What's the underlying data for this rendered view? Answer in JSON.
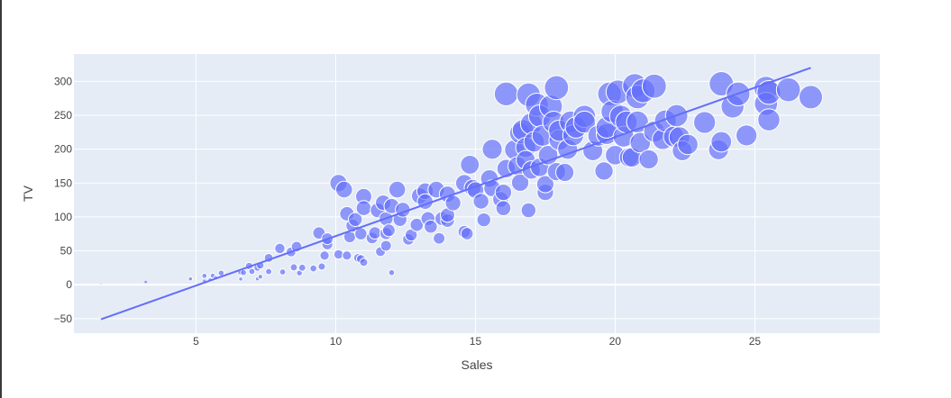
{
  "chart_data": {
    "type": "scatter",
    "title": "",
    "xlabel": "Sales",
    "ylabel": "TV",
    "xlim": [
      0.63,
      29.47
    ],
    "ylim": [
      -71.5,
      340.3
    ],
    "x_ticks": [
      5,
      10,
      15,
      20,
      25
    ],
    "y_ticks": [
      -50,
      0,
      50,
      100,
      150,
      200,
      250,
      300
    ],
    "grid": true,
    "legend": "none",
    "marker_size_encodes": "TV",
    "marker_color": "#636efa",
    "plot_background": "#e5ecf6",
    "trendline": {
      "x": [
        1.6,
        27.0
      ],
      "y": [
        -51,
        320
      ],
      "color": "#636efa"
    },
    "points": [
      [
        1.6,
        0.7
      ],
      [
        3.2,
        4.1
      ],
      [
        4.8,
        8.6
      ],
      [
        5.3,
        13.1
      ],
      [
        5.3,
        5.4
      ],
      [
        5.5,
        7.3
      ],
      [
        5.6,
        13.2
      ],
      [
        5.7,
        10.1
      ],
      [
        5.9,
        17.2
      ],
      [
        6.6,
        8.4
      ],
      [
        6.6,
        18.7
      ],
      [
        6.7,
        17.9
      ],
      [
        6.9,
        27.5
      ],
      [
        7.0,
        19.6
      ],
      [
        7.2,
        25.1
      ],
      [
        7.2,
        8.7
      ],
      [
        7.3,
        28.6
      ],
      [
        7.3,
        11.7
      ],
      [
        7.6,
        39.5
      ],
      [
        7.6,
        19.4
      ],
      [
        8.0,
        53.5
      ],
      [
        8.1,
        18.8
      ],
      [
        8.4,
        48.3
      ],
      [
        8.5,
        25.6
      ],
      [
        8.6,
        56.2
      ],
      [
        8.7,
        17.2
      ],
      [
        8.8,
        25.0
      ],
      [
        9.2,
        24.0
      ],
      [
        9.4,
        76.3
      ],
      [
        9.5,
        26.8
      ],
      [
        9.6,
        43.0
      ],
      [
        9.7,
        59.6
      ],
      [
        9.7,
        67.8
      ],
      [
        10.1,
        149.8
      ],
      [
        10.1,
        44.7
      ],
      [
        10.3,
        140.3
      ],
      [
        10.4,
        104.6
      ],
      [
        10.4,
        43.1
      ],
      [
        10.5,
        70.6
      ],
      [
        10.6,
        87.2
      ],
      [
        10.7,
        96.2
      ],
      [
        10.8,
        39.5
      ],
      [
        10.9,
        75.1
      ],
      [
        10.9,
        38.0
      ],
      [
        11.0,
        130.1
      ],
      [
        11.0,
        33.0
      ],
      [
        11.0,
        113.0
      ],
      [
        11.3,
        69.0
      ],
      [
        11.4,
        76.4
      ],
      [
        11.5,
        109.8
      ],
      [
        11.6,
        48.8
      ],
      [
        11.7,
        121.0
      ],
      [
        11.8,
        57.5
      ],
      [
        11.8,
        75.5
      ],
      [
        11.8,
        97.2
      ],
      [
        11.9,
        80.2
      ],
      [
        12.0,
        116.0
      ],
      [
        12.0,
        17.9
      ],
      [
        12.2,
        140.3
      ],
      [
        12.3,
        96.2
      ],
      [
        12.4,
        110.7
      ],
      [
        12.6,
        66.9
      ],
      [
        12.7,
        73.4
      ],
      [
        12.9,
        88.3
      ],
      [
        13.0,
        131.1
      ],
      [
        13.2,
        137.9
      ],
      [
        13.2,
        122.6
      ],
      [
        13.3,
        97.5
      ],
      [
        13.4,
        85.7
      ],
      [
        13.6,
        140.3
      ],
      [
        13.7,
        68.4
      ],
      [
        13.8,
        97.5
      ],
      [
        14.0,
        133.5
      ],
      [
        14.0,
        94.7
      ],
      [
        14.0,
        102.7
      ],
      [
        14.2,
        120.5
      ],
      [
        14.6,
        149.7
      ],
      [
        14.6,
        78.2
      ],
      [
        14.7,
        75.3
      ],
      [
        14.8,
        177.0
      ],
      [
        14.9,
        142.9
      ],
      [
        15.0,
        139.5
      ],
      [
        15.2,
        123.1
      ],
      [
        15.3,
        95.7
      ],
      [
        15.5,
        156.6
      ],
      [
        15.6,
        142.3
      ],
      [
        15.6,
        199.8
      ],
      [
        15.9,
        125.7
      ],
      [
        16.0,
        112.9
      ],
      [
        16.0,
        136.2
      ],
      [
        16.1,
        281.4
      ],
      [
        16.1,
        171.3
      ],
      [
        16.4,
        199.1
      ],
      [
        16.5,
        175.1
      ],
      [
        16.6,
        150.5
      ],
      [
        16.6,
        223.6
      ],
      [
        16.7,
        228.0
      ],
      [
        16.8,
        202.5
      ],
      [
        16.8,
        183.9
      ],
      [
        16.9,
        280.2
      ],
      [
        16.9,
        109.8
      ],
      [
        17.0,
        169.2
      ],
      [
        17.0,
        237.4
      ],
      [
        17.1,
        210.8
      ],
      [
        17.2,
        265.6
      ],
      [
        17.3,
        248.8
      ],
      [
        17.3,
        173.2
      ],
      [
        17.4,
        219.8
      ],
      [
        17.5,
        136.2
      ],
      [
        17.5,
        148.3
      ],
      [
        17.6,
        191.1
      ],
      [
        17.7,
        262.9
      ],
      [
        17.8,
        239.8
      ],
      [
        17.9,
        290.7
      ],
      [
        17.9,
        166.8
      ],
      [
        18.0,
        213.4
      ],
      [
        18.0,
        227.2
      ],
      [
        18.2,
        165.6
      ],
      [
        18.3,
        199.8
      ],
      [
        18.4,
        240.1
      ],
      [
        18.5,
        220.5
      ],
      [
        18.6,
        232.1
      ],
      [
        18.9,
        248.4
      ],
      [
        18.9,
        239.9
      ],
      [
        19.2,
        197.6
      ],
      [
        19.4,
        219.9
      ],
      [
        19.6,
        167.7
      ],
      [
        19.7,
        222.4
      ],
      [
        19.7,
        232.1
      ],
      [
        19.8,
        281.4
      ],
      [
        19.9,
        255.4
      ],
      [
        20.0,
        191.1
      ],
      [
        20.1,
        284.3
      ],
      [
        20.2,
        248.4
      ],
      [
        20.3,
        218.4
      ],
      [
        20.4,
        240.1
      ],
      [
        20.5,
        187.8
      ],
      [
        20.6,
        187.9
      ],
      [
        20.7,
        293.6
      ],
      [
        20.8,
        276.9
      ],
      [
        20.8,
        240.1
      ],
      [
        20.9,
        209.6
      ],
      [
        21.0,
        286.0
      ],
      [
        21.2,
        184.9
      ],
      [
        21.4,
        292.9
      ],
      [
        21.4,
        225.8
      ],
      [
        21.7,
        214.7
      ],
      [
        21.8,
        241.7
      ],
      [
        22.1,
        218.5
      ],
      [
        22.2,
        249.3
      ],
      [
        22.3,
        217.7
      ],
      [
        22.4,
        197.6
      ],
      [
        22.6,
        206.9
      ],
      [
        23.2,
        239.3
      ],
      [
        23.7,
        199.1
      ],
      [
        23.8,
        296.4
      ],
      [
        23.8,
        210.8
      ],
      [
        24.2,
        262.7
      ],
      [
        24.4,
        281.4
      ],
      [
        24.7,
        220.3
      ],
      [
        25.4,
        289.7
      ],
      [
        25.4,
        266.9
      ],
      [
        25.5,
        243.2
      ],
      [
        25.5,
        283.6
      ],
      [
        26.2,
        287.6
      ],
      [
        27.0,
        276.7
      ]
    ]
  }
}
